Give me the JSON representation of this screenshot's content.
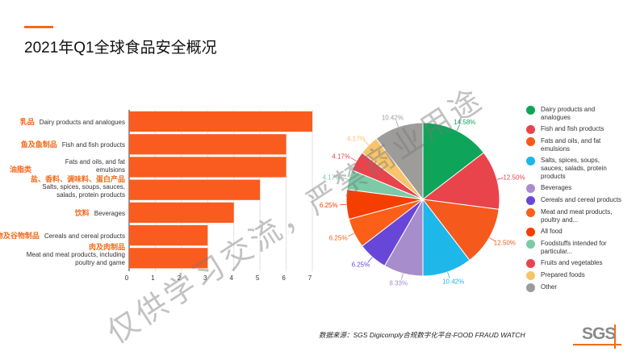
{
  "title": "2021年Q1全球食品安全概况",
  "footer": "数据来源：SGS Digicomply合规数字化平台-FOOD FRAUD WATCH",
  "logo": "SGS",
  "watermark": "仅供学习交流，严禁商业用途",
  "chart_data": [
    {
      "type": "bar",
      "orientation": "horizontal",
      "xlim": [
        0,
        7
      ],
      "ticks": [
        "0",
        "1",
        "2",
        "3",
        "4",
        "5",
        "6",
        "7"
      ],
      "color": "#f95c1e",
      "categories": [
        {
          "zh": "乳品",
          "en": "Dairy products and analogues"
        },
        {
          "zh": "鱼及鱼制品",
          "en": "Fish and fish products"
        },
        {
          "zh": "油脂类",
          "en": "Fats and oils, and fat emulsions"
        },
        {
          "zh": "盐、香料、调味料、蛋白产品",
          "en": "Salts, spices, soups, sauces, salads, protein products"
        },
        {
          "zh": "饮料",
          "en": "Beverages"
        },
        {
          "zh": "谷物及谷物制品",
          "en": "Cereals and cereal products"
        },
        {
          "zh": "肉及肉制品",
          "en": "Meat and meat products, including poultry and game"
        }
      ],
      "values": [
        7,
        6,
        6,
        5,
        4,
        3,
        3
      ]
    },
    {
      "type": "pie",
      "slices": [
        {
          "name": "Dairy products and analogues",
          "value": 14.58,
          "label": "14.58%",
          "color": "#0ea55a"
        },
        {
          "name": "Fish and fish products",
          "value": 12.5,
          "label": "12.50%",
          "color": "#e9434c"
        },
        {
          "name": "Fats and oils, and fat emulsions",
          "value": 12.5,
          "label": "12.50%",
          "color": "#f55a1c"
        },
        {
          "name": "Salts, spices, soups, sauces, salads, protein products",
          "value": 10.42,
          "label": "10.42%",
          "color": "#1db7ea"
        },
        {
          "name": "Beverages",
          "value": 8.33,
          "label": "8.33%",
          "color": "#a88dcc"
        },
        {
          "name": "Cereals and cereal products",
          "value": 6.25,
          "label": "6.25%",
          "color": "#6847d8"
        },
        {
          "name": "Meat and meat products, poultry and...",
          "value": 6.25,
          "label": "6.25%",
          "color": "#fb5f18"
        },
        {
          "name": "All food",
          "value": 6.25,
          "label": "6.25%",
          "color": "#f53e02"
        },
        {
          "name": "Foodstuffs intended for particular...",
          "value": 4.17,
          "label": "4.17%",
          "color": "#7ccaa7"
        },
        {
          "name": "Fruits and vegetables",
          "value": 4.17,
          "label": "4.17%",
          "color": "#e9434c"
        },
        {
          "name": "Prepared foods",
          "value": 4.17,
          "label": "4.17%",
          "color": "#f6c46a"
        },
        {
          "name": "Other",
          "value": 10.42,
          "label": "10.42%",
          "color": "#9e9b9b"
        }
      ]
    }
  ]
}
